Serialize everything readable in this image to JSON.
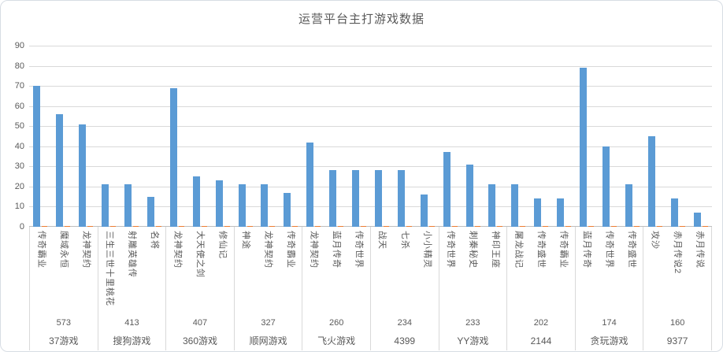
{
  "chart_data": {
    "type": "bar",
    "title": "运营平台主打游戏数据",
    "xlabel": "",
    "ylabel": "",
    "ylim": [
      0,
      90
    ],
    "yticks": [
      0,
      10,
      20,
      30,
      40,
      50,
      60,
      70,
      80,
      90
    ],
    "grid": true,
    "legend": "none",
    "colors": {
      "primary_series": "#5b9bd5",
      "secondary_series": "#ed7d31",
      "gridline": "#d9d9d9",
      "axis_line": "#bfbfbf",
      "text": "#595959"
    },
    "secondary_series_approx_value": 0.5,
    "groups": [
      {
        "platform": "37游戏",
        "total": "573",
        "games": [
          {
            "name": "传奇霸业",
            "value": 70
          },
          {
            "name": "魔域永恒",
            "value": 56
          },
          {
            "name": "龙神契约",
            "value": 51
          }
        ]
      },
      {
        "platform": "搜狗游戏",
        "total": "413",
        "games": [
          {
            "name": "三生三世十里桃花",
            "value": 21
          },
          {
            "name": "射雕英雄传",
            "value": 21
          },
          {
            "name": "名将",
            "value": 15
          }
        ]
      },
      {
        "platform": "360游戏",
        "total": "407",
        "games": [
          {
            "name": "龙神契约",
            "value": 69
          },
          {
            "name": "大天使之剑",
            "value": 25
          },
          {
            "name": "修仙记",
            "value": 23
          }
        ]
      },
      {
        "platform": "顺网游戏",
        "total": "327",
        "games": [
          {
            "name": "神途",
            "value": 21
          },
          {
            "name": "龙神契约",
            "value": 21
          },
          {
            "name": "传奇霸业",
            "value": 17
          }
        ]
      },
      {
        "platform": "飞火游戏",
        "total": "260",
        "games": [
          {
            "name": "龙神契约",
            "value": 42
          },
          {
            "name": "蓝月传奇",
            "value": 28
          },
          {
            "name": "传奇世界",
            "value": 28
          }
        ]
      },
      {
        "platform": "4399",
        "total": "234",
        "games": [
          {
            "name": "战天",
            "value": 28
          },
          {
            "name": "七杀",
            "value": 28
          },
          {
            "name": "小小精灵",
            "value": 16
          }
        ]
      },
      {
        "platform": "YY游戏",
        "total": "233",
        "games": [
          {
            "name": "传奇世界",
            "value": 37
          },
          {
            "name": "刺秦秘史",
            "value": 31
          },
          {
            "name": "神印王座",
            "value": 21
          }
        ]
      },
      {
        "platform": "2144",
        "total": "202",
        "games": [
          {
            "name": "屠龙战记",
            "value": 21
          },
          {
            "name": "传奇盛世",
            "value": 14
          },
          {
            "name": "传奇霸业",
            "value": 14
          }
        ]
      },
      {
        "platform": "贪玩游戏",
        "total": "174",
        "games": [
          {
            "name": "蓝月传奇",
            "value": 79
          },
          {
            "name": "传奇世界",
            "value": 40
          },
          {
            "name": "传奇盛世",
            "value": 21
          }
        ]
      },
      {
        "platform": "9377",
        "total": "160",
        "games": [
          {
            "name": "攻沙",
            "value": 45
          },
          {
            "name": "赤月传说2",
            "value": 14
          },
          {
            "name": "赤月传说",
            "value": 7
          }
        ]
      }
    ]
  }
}
